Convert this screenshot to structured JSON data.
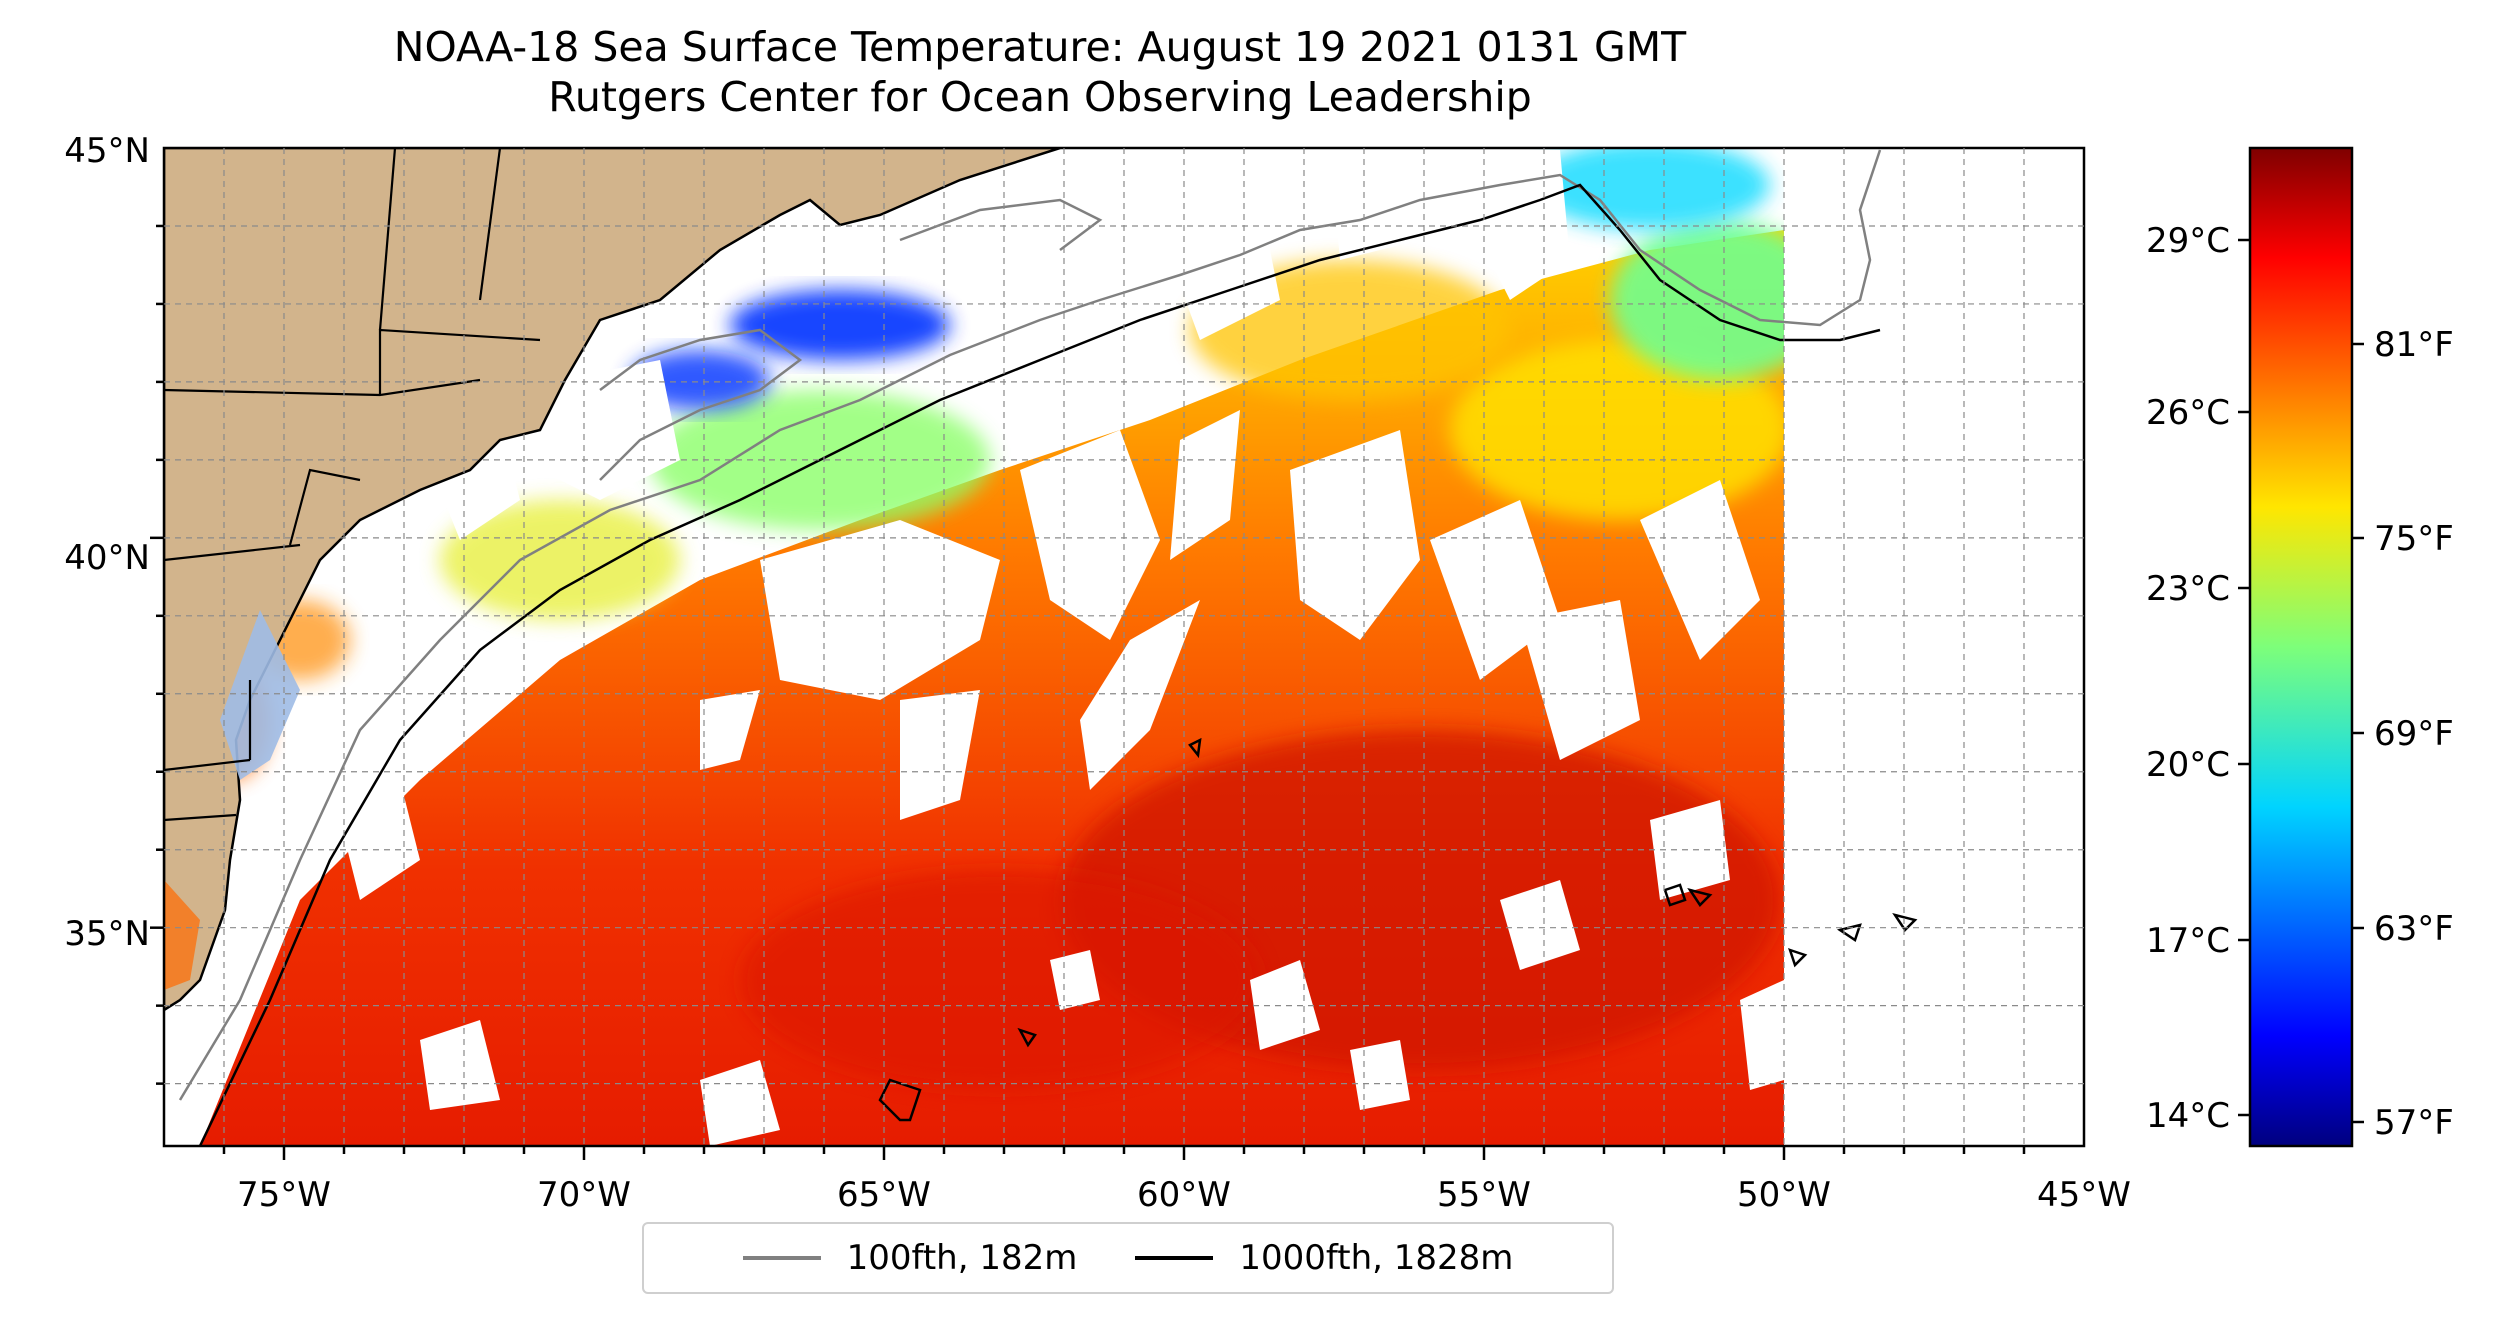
{
  "title": {
    "line1": "NOAA-18 Sea Surface Temperature: August 19 2021 0131 GMT",
    "line2": "Rutgers Center for Ocean Observing Leadership"
  },
  "map": {
    "lat_labels": [
      "45°N",
      "40°N",
      "35°N"
    ],
    "lon_labels": [
      "75°W",
      "70°W",
      "65°W",
      "60°W",
      "55°W",
      "50°W",
      "45°W"
    ],
    "lat_range": [
      32.2,
      45
    ],
    "lon_range": [
      -77,
      -45
    ],
    "grid": true,
    "land_color": "#d2b48c",
    "water_color": "#9fbbe6"
  },
  "colorbar": {
    "colormap": "jet",
    "celsius_labels": [
      "29°C",
      "26°C",
      "23°C",
      "20°C",
      "17°C",
      "14°C"
    ],
    "fahrenheit_labels": [
      "81°F",
      "75°F",
      "69°F",
      "63°F",
      "57°F"
    ]
  },
  "legend": {
    "items": [
      {
        "label": "100fth, 182m",
        "color": "#808080"
      },
      {
        "label": "1000fth, 1828m",
        "color": "#000000"
      }
    ],
    "placement": "bottom-center"
  }
}
